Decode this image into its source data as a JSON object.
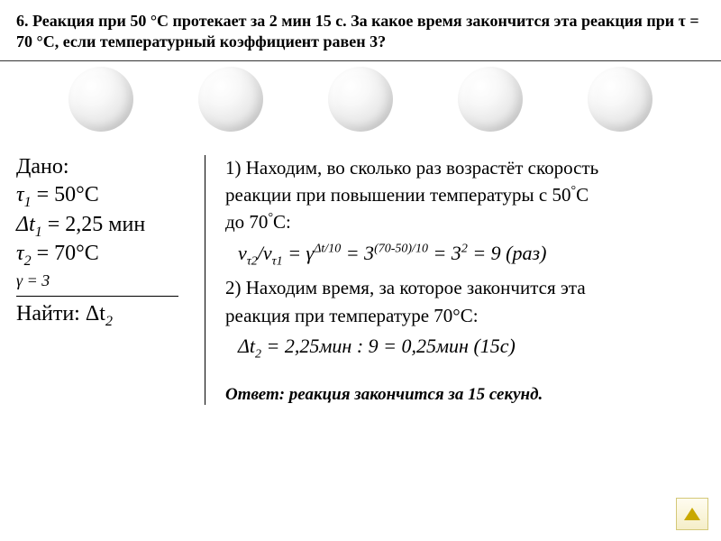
{
  "header": {
    "text": "6. Реакция при 50 °С протекает за 2 мин 15 с. За какое время закончится эта реакция при τ = 70 °С, если температурный коэффициент равен 3?"
  },
  "given": {
    "label": "Дано:",
    "tau1": "τ",
    "tau1_sub": "1",
    "tau1_val": " = 50°С",
    "dt1": "Δt",
    "dt1_sub": "1",
    "dt1_val": " = 2,25 мин",
    "tau2": "τ",
    "tau2_sub": "2",
    "tau2_val": " = 70°С",
    "gamma": "γ = 3",
    "find": "Найти: Δt",
    "find_sub": "2"
  },
  "solution": {
    "step1_1": "1) Находим, во сколько раз возрастёт скорость",
    "step1_2": " реакции при повышении температуры с 50",
    "step1_2_deg": "°",
    "step1_2_end": "С",
    "step1_3": "до 70",
    "step1_3_deg": "°",
    "step1_3_end": "С:",
    "formula1_v": "v",
    "formula1_sub1": "τ2",
    "formula1_slash": "/",
    "formula1_v2": "v",
    "formula1_sub2": "τ1",
    "formula1_eq": " = γ",
    "formula1_sup1": "Δt/10",
    "formula1_eq2": " = 3",
    "formula1_sup2": "(70-50)/10",
    "formula1_eq3": " = 3",
    "formula1_sup3": "2",
    "formula1_res": " = 9 (раз)",
    "step2_1": "2) Находим время, за которое закончится эта",
    "step2_2": " реакция при температуре 70°С:",
    "formula2_pre": "Δt",
    "formula2_sub": "2",
    "formula2_rest": " = 2,25мин : 9 = 0,25мин (15с)",
    "answer": "Ответ: реакция закончится за 15 секунд."
  },
  "styling": {
    "circle_count": 5,
    "circle_diameter": 72,
    "background": "#ffffff",
    "text_color": "#000000",
    "button_bg_top": "#fffcf0",
    "button_bg_bottom": "#f5eec8",
    "button_border": "#d4c878",
    "arrow_color": "#c9a800",
    "header_fontsize": 18,
    "given_fontsize": 24,
    "solution_fontsize": 21,
    "formula_fontsize": 22
  }
}
